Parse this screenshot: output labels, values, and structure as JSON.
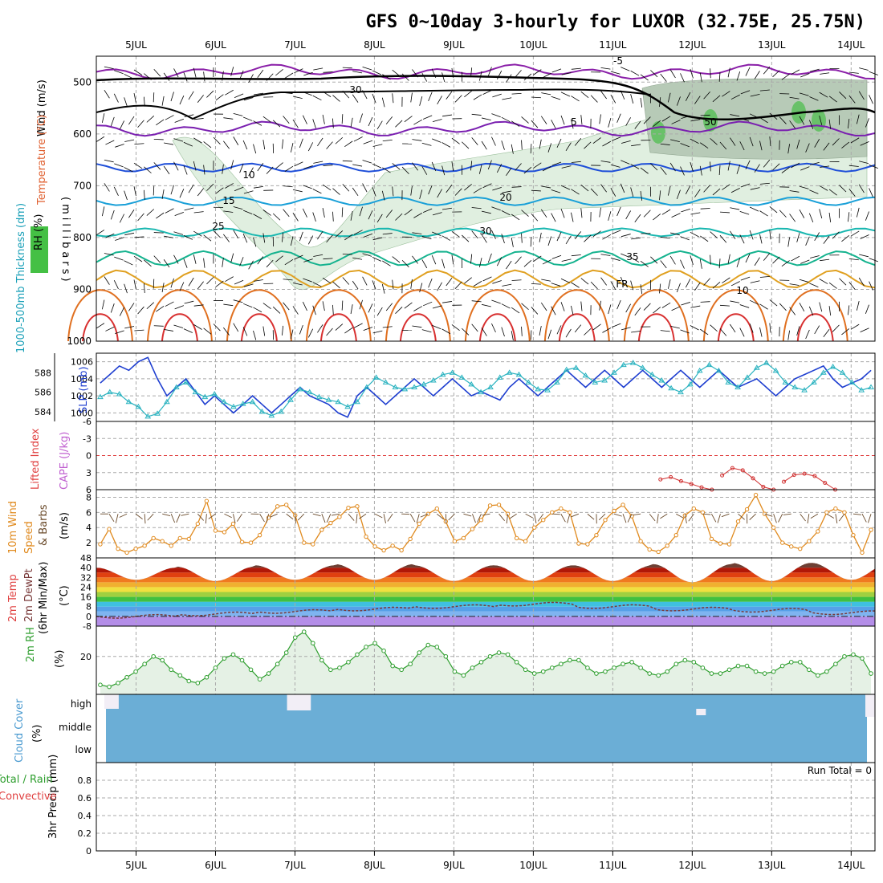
{
  "title": "GFS 0~10day 3-hourly for LUXOR (32.75E, 25.75N)",
  "colors": {
    "grid": "#aaaaaa",
    "cloud_fill": "#6baed6",
    "rh_fill": "#e5f1e5",
    "rh_line": "#2e9e2e",
    "slp_line": "#1f3fd0",
    "thick_line": "#2bb3c0",
    "wind_line": "#e08a1e",
    "cape_line": "#d03030",
    "fr_line": "#000000"
  },
  "chart_data": [
    {
      "panel": "upper-air",
      "type": "line",
      "x_ticks": [
        "5JUL",
        "6JUL",
        "7JUL",
        "8JUL",
        "9JUL",
        "10JUL",
        "11JUL",
        "12JUL",
        "13JUL",
        "14JUL"
      ],
      "y_ticks": [
        "500",
        "600",
        "700",
        "800",
        "900",
        "1000"
      ],
      "ylim": [
        1000,
        450
      ],
      "ylabels": [
        "Wind (m/s)",
        "Temperature (°C)",
        "RH (%)",
        "(millibars)"
      ],
      "contour_labels": [
        "-5",
        "5",
        "10",
        "15",
        "20",
        "25",
        "30",
        "35",
        "FR",
        "10",
        "30",
        "50"
      ],
      "isotherms": [
        {
          "label": "-5",
          "pressure": 480
        },
        {
          "label": "5",
          "pressure": 590
        },
        {
          "label": "10",
          "pressure": 665
        },
        {
          "label": "15",
          "pressure": 730
        },
        {
          "label": "20",
          "pressure": 790
        },
        {
          "label": "25",
          "pressure": 840
        },
        {
          "label": "30",
          "pressure": 880
        }
      ]
    },
    {
      "panel": "slp-thickness",
      "type": "line",
      "ylabel_left": "1000-500mb Thickness (dm)",
      "ylabel_right": "SLP (mb)",
      "y_ticks_left": [
        "584",
        "586",
        "588"
      ],
      "y_ticks_right": [
        "1000",
        "1002",
        "1004",
        "1006"
      ],
      "ylim_left": [
        583,
        590
      ],
      "series": [
        {
          "name": "SLP (mb)",
          "ylim": [
            999,
            1007
          ],
          "values": [
            1003.5,
            1004.5,
            1005.5,
            1005,
            1006,
            1006.5,
            1004,
            1002,
            1003,
            1004,
            1002.5,
            1001,
            1002,
            1001,
            1000,
            1001,
            1002,
            1001,
            1000,
            1001,
            1002,
            1003,
            1002,
            1001.5,
            1001,
            1000,
            999.5,
            1002,
            1003,
            1002,
            1001,
            1002,
            1003,
            1004,
            1003,
            1002,
            1003,
            1004,
            1003,
            1002,
            1002.5,
            1002,
            1001.5,
            1003,
            1004,
            1003,
            1002,
            1003,
            1004,
            1005,
            1004,
            1003,
            1004,
            1005,
            1004,
            1003,
            1004,
            1005,
            1004,
            1003,
            1004,
            1005,
            1004,
            1003,
            1004,
            1005,
            1004,
            1003,
            1003.5,
            1004,
            1003,
            1002,
            1003,
            1004,
            1004.5,
            1005,
            1005.5,
            1004,
            1003,
            1003.5,
            1004,
            1005
          ]
        },
        {
          "name": "1000-500mb Thickness (dm)",
          "values": [
            585.5,
            586,
            585.8,
            585,
            584.5,
            583.5,
            583.8,
            585,
            586.5,
            587,
            586,
            585.5,
            585.8,
            585,
            584.5,
            584.8,
            585,
            584,
            583.6,
            584,
            585.2,
            586.3,
            586,
            585.5,
            585.2,
            585,
            584.5,
            585,
            586.5,
            587.5,
            587,
            586.5,
            586.3,
            586.5,
            586.8,
            587.2,
            587.8,
            588,
            587.5,
            586.8,
            586,
            586.5,
            587.5,
            588,
            587.8,
            587,
            586.3,
            586.2,
            587,
            588.3,
            588.5,
            587.7,
            587,
            587.2,
            588,
            588.8,
            589,
            588.5,
            587.8,
            587.2,
            586.4,
            586,
            586.8,
            588.2,
            588.8,
            588.2,
            587,
            586.5,
            587.5,
            588.5,
            589,
            588.2,
            587,
            586.5,
            586.2,
            587,
            588,
            588.6,
            588,
            587,
            586.2,
            586.5
          ]
        }
      ]
    },
    {
      "panel": "stability",
      "type": "line",
      "ylabel": "Lifted Index",
      "ylabel2": "CAPE (J/kg)",
      "y_ticks": [
        "-6",
        "-3",
        "0",
        "3",
        "6"
      ],
      "ylim": [
        -6,
        6
      ],
      "series": [
        {
          "name": "Lifted Index",
          "x_range": [
            7.6,
            10.0
          ],
          "values": [
            4.2,
            3.8,
            4.5,
            5.0,
            5.6,
            6.0,
            3.5,
            2.2,
            2.6,
            4.0,
            5.5,
            6.0,
            4.6,
            3.4,
            3.2,
            3.6,
            4.8,
            6.0
          ]
        }
      ]
    },
    {
      "panel": "surface-wind",
      "type": "line",
      "ylabel": "10m Wind Speed & Barbs (m/s)",
      "y_ticks": [
        "2",
        "4",
        "6",
        "8"
      ],
      "ylim": [
        0,
        9
      ],
      "series": [
        {
          "name": "10m Wind Speed",
          "values": [
            1.8,
            3.8,
            1.2,
            0.7,
            1.2,
            1.6,
            2.6,
            2.2,
            1.6,
            2.6,
            2.5,
            4.5,
            7.5,
            3.6,
            3.4,
            4.5,
            2.1,
            2.0,
            3.0,
            5.3,
            6.8,
            7.0,
            5.6,
            2.0,
            1.8,
            3.7,
            4.6,
            5.4,
            6.6,
            6.8,
            2.8,
            1.5,
            1.0,
            1.6,
            1.0,
            2.5,
            4.5,
            5.8,
            6.5,
            4.8,
            2.2,
            2.6,
            3.8,
            5.0,
            6.9,
            7.0,
            5.8,
            2.6,
            2.2,
            4.0,
            5.0,
            6.0,
            6.5,
            6.0,
            1.9,
            1.8,
            3.0,
            5.0,
            6.2,
            7.0,
            5.5,
            2.2,
            1.1,
            0.8,
            1.6,
            3.0,
            5.6,
            6.5,
            6.0,
            2.5,
            1.9,
            1.8,
            4.8,
            6.4,
            8.3,
            5.8,
            4.0,
            2.0,
            1.5,
            1.2,
            2.2,
            3.5,
            6.0,
            6.5,
            6.0,
            3.0,
            0.7,
            3.7
          ]
        }
      ]
    },
    {
      "panel": "temperature",
      "type": "area",
      "ylabel": "2m Temp 2m DewPt (6hr Min/Max)",
      "unit": "(°C)",
      "y_ticks": [
        "48",
        "40",
        "32",
        "24",
        "16",
        "8",
        "0",
        "-8"
      ],
      "ylim": [
        -8,
        48
      ],
      "daily_min": [
        30,
        29,
        30,
        30,
        29,
        29,
        29,
        28,
        29,
        30
      ],
      "daily_max": [
        40,
        41,
        42,
        43,
        42,
        42,
        42,
        43,
        44,
        44
      ],
      "dewpoint": [
        0,
        2,
        4,
        6,
        8,
        10,
        8,
        6,
        5,
        3
      ]
    },
    {
      "panel": "rh",
      "type": "area",
      "ylabel": "2m RH",
      "unit": "(%)",
      "y_ticks": [
        "20"
      ],
      "ylim": [
        0,
        36
      ],
      "values": [
        5,
        4,
        6,
        9,
        12,
        16,
        20,
        18,
        13,
        10,
        7,
        6,
        9,
        14,
        19,
        21,
        18,
        13,
        8,
        11,
        16,
        22,
        30,
        33,
        27,
        18,
        13,
        14,
        17,
        21,
        25,
        27,
        23,
        15,
        13,
        16,
        22,
        26,
        25,
        20,
        12,
        10,
        14,
        17,
        20,
        22,
        21,
        17,
        13,
        11,
        12,
        14,
        16,
        18,
        18,
        14,
        11,
        12,
        14,
        16,
        17,
        14,
        11,
        10,
        12,
        16,
        18,
        17,
        14,
        11,
        11,
        13,
        15,
        15,
        12,
        11,
        12,
        15,
        17,
        17,
        13,
        10,
        12,
        16,
        20,
        21,
        19,
        11
      ]
    },
    {
      "panel": "cloud",
      "type": "heatmap",
      "ylabel": "Cloud Cover (%)",
      "row_labels": [
        "high",
        "middle",
        "low"
      ]
    },
    {
      "panel": "precip",
      "type": "bar",
      "ylabel": "3hr Precip (mm)",
      "ylabel2": "Total / Rain",
      "ylabel3": "Convective",
      "y_ticks": [
        "0",
        "0.2",
        "0.4",
        "0.6",
        "0.8"
      ],
      "ylim": [
        0,
        1
      ],
      "run_total_label": "Run Total = 0",
      "values": []
    }
  ]
}
